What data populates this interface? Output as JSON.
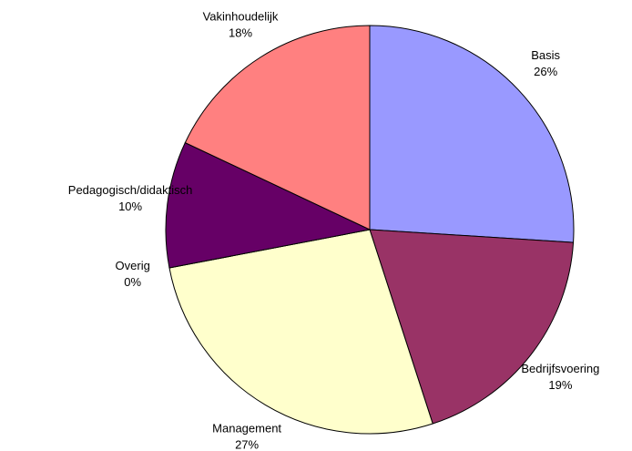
{
  "chart_data": {
    "type": "pie",
    "categories": [
      "Basis",
      "Bedrijfsvoering",
      "Management",
      "Overig",
      "Pedagogisch/didaktisch",
      "Vakinhoudelijk"
    ],
    "values": [
      26,
      19,
      27,
      0,
      10,
      18
    ],
    "value_labels": [
      "26%",
      "19%",
      "27%",
      "0%",
      "10%",
      "18%"
    ],
    "colors": [
      "#9999ff",
      "#993366",
      "#ffffcc",
      "#ccffff",
      "#660066",
      "#ff8080"
    ]
  }
}
